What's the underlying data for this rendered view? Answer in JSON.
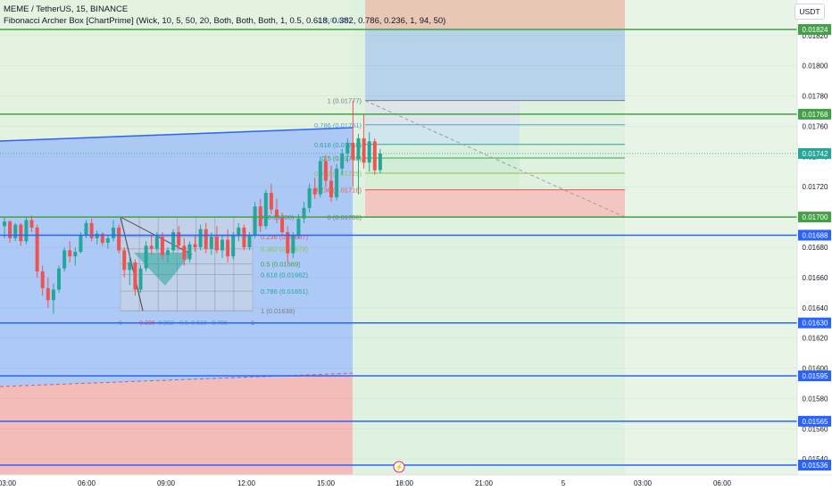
{
  "header": {
    "title": "MEME / TetherUS, 15, BINANCE",
    "indicator": "Fibonacci Archer Box [ChartPrime] (Wick, 10, 5, 50, 20, Both, Both, Both, 1, 0.5, 0.618, 0.382, 0.786, 0.236, 1, 94, 50)"
  },
  "currency_button": "USDT",
  "colors": {
    "up": "#26a69a",
    "down": "#ef5350",
    "blue_line": "#2962ff",
    "green_line": "#43a047",
    "blue_zone": "#a9c6f5",
    "red_zone": "#f2b8b5",
    "green_zone": "#dff2df"
  },
  "chart_data": {
    "type": "candlestick",
    "symbol": "MEME/USDT",
    "interval": "15",
    "exchange": "BINANCE",
    "ylim": [
      0.01532,
      0.01842
    ],
    "price_ticks": [
      "0.01540",
      "0.01560",
      "0.01580",
      "0.01600",
      "0.01620",
      "0.01640",
      "0.01660",
      "0.01680",
      "0.01700",
      "0.01720",
      "0.01740",
      "0.01760",
      "0.01780",
      "0.01800",
      "0.01820"
    ],
    "time_labels": [
      "03:00",
      "06:00",
      "09:00",
      "12:00",
      "15:00",
      "18:00",
      "21:00",
      "5",
      "03:00",
      "06:00"
    ],
    "horizontal_lines": [
      {
        "price": 0.01824,
        "label": "0.01824",
        "color": "green"
      },
      {
        "price": 0.01768,
        "label": "0.01768",
        "color": "green"
      },
      {
        "price": 0.017,
        "label": "0.01700",
        "color": "green"
      },
      {
        "price": 0.01688,
        "label": "0.01688",
        "color": "blue"
      },
      {
        "price": 0.0163,
        "label": "0.01630",
        "color": "blue"
      },
      {
        "price": 0.01595,
        "label": "0.01595",
        "color": "blue"
      },
      {
        "price": 0.01565,
        "label": "0.01565",
        "color": "blue"
      },
      {
        "price": 0.01536,
        "label": "0.01536",
        "color": "blue"
      }
    ],
    "last_price": {
      "price": 0.01742,
      "label": "0.01742"
    },
    "fib_box_right": [
      {
        "text": "1 (0.01777)",
        "price": 0.01777,
        "color": "#787b86"
      },
      {
        "text": "0.786 (0.01761)",
        "price": 0.01761,
        "color": "#5b9bd5"
      },
      {
        "text": "0.618 (0.01748)",
        "price": 0.01748,
        "color": "#26a69a"
      },
      {
        "text": "0.5 (0.01739)",
        "price": 0.01739,
        "color": "#43a047"
      },
      {
        "text": "0.382 (0.01729)",
        "price": 0.01729,
        "color": "#8bc34a"
      },
      {
        "text": "0.236 (0.01718)",
        "price": 0.01718,
        "color": "#ef5350"
      },
      {
        "text": "0 (0.01700)",
        "price": 0.017,
        "color": "#787b86"
      }
    ],
    "fib_box_right_top": "1 (0.01825)",
    "fib_box_left": [
      {
        "text": "0 (0.01700)",
        "price": 0.017,
        "color": "#787b86"
      },
      {
        "text": "0.236 (0.01687)",
        "price": 0.01687,
        "color": "#ef5350"
      },
      {
        "text": "0.382 (0.01679)",
        "price": 0.01679,
        "color": "#8bc34a"
      },
      {
        "text": "0.5 (0.01669)",
        "price": 0.01669,
        "color": "#43a047"
      },
      {
        "text": "0.618 (0.01662)",
        "price": 0.01662,
        "color": "#26a69a"
      },
      {
        "text": "0.786 (0.01651)",
        "price": 0.01651,
        "color": "#26a69a"
      },
      {
        "text": "1 (0.01638)",
        "price": 0.01638,
        "color": "#787b86"
      }
    ],
    "fib_box_left_bottom": [
      "0",
      "0.236",
      "0.382",
      "0.5",
      "0.618",
      "0.786",
      "1"
    ],
    "candles": [
      [
        0.01694,
        0.017,
        0.01686,
        0.01697
      ],
      [
        0.01697,
        0.01698,
        0.01683,
        0.01686
      ],
      [
        0.01686,
        0.01696,
        0.01684,
        0.01695
      ],
      [
        0.01695,
        0.01696,
        0.01681,
        0.01684
      ],
      [
        0.01684,
        0.017,
        0.01682,
        0.01698
      ],
      [
        0.01698,
        0.01701,
        0.0169,
        0.01693
      ],
      [
        0.01693,
        0.01695,
        0.0166,
        0.01664
      ],
      [
        0.01664,
        0.01668,
        0.01648,
        0.01653
      ],
      [
        0.01653,
        0.0166,
        0.0164,
        0.01645
      ],
      [
        0.01645,
        0.01656,
        0.01636,
        0.01652
      ],
      [
        0.01652,
        0.01668,
        0.0165,
        0.01666
      ],
      [
        0.01666,
        0.0168,
        0.01664,
        0.01678
      ],
      [
        0.01678,
        0.01684,
        0.0167,
        0.01674
      ],
      [
        0.01674,
        0.0168,
        0.01668,
        0.01677
      ],
      [
        0.01677,
        0.0169,
        0.01676,
        0.01688
      ],
      [
        0.01688,
        0.01698,
        0.01686,
        0.01696
      ],
      [
        0.01696,
        0.01699,
        0.01684,
        0.01686
      ],
      [
        0.01686,
        0.01691,
        0.01682,
        0.01689
      ],
      [
        0.01689,
        0.0169,
        0.01681,
        0.01683
      ],
      [
        0.01683,
        0.01688,
        0.01679,
        0.01686
      ],
      [
        0.01686,
        0.01698,
        0.01684,
        0.01693
      ],
      [
        0.01693,
        0.01695,
        0.01676,
        0.01678
      ],
      [
        0.01678,
        0.0168,
        0.0166,
        0.01665
      ],
      [
        0.01665,
        0.01675,
        0.01655,
        0.0167
      ],
      [
        0.0167,
        0.01672,
        0.01648,
        0.01652
      ],
      [
        0.01652,
        0.01668,
        0.0165,
        0.01666
      ],
      [
        0.01666,
        0.01684,
        0.01664,
        0.01681
      ],
      [
        0.01681,
        0.01688,
        0.01675,
        0.01679
      ],
      [
        0.01679,
        0.0169,
        0.01677,
        0.01687
      ],
      [
        0.01687,
        0.0169,
        0.01672,
        0.01675
      ],
      [
        0.01675,
        0.0168,
        0.0167,
        0.01678
      ],
      [
        0.01678,
        0.01692,
        0.01676,
        0.0169
      ],
      [
        0.0169,
        0.01694,
        0.01678,
        0.01681
      ],
      [
        0.01681,
        0.01686,
        0.01668,
        0.01672
      ],
      [
        0.01672,
        0.01684,
        0.0167,
        0.01682
      ],
      [
        0.01682,
        0.01688,
        0.01677,
        0.0168
      ],
      [
        0.0168,
        0.01695,
        0.01678,
        0.01692
      ],
      [
        0.01692,
        0.01696,
        0.01676,
        0.01679
      ],
      [
        0.01679,
        0.0169,
        0.01675,
        0.01687
      ],
      [
        0.01687,
        0.01694,
        0.01676,
        0.01678
      ],
      [
        0.01678,
        0.01688,
        0.01673,
        0.01685
      ],
      [
        0.01685,
        0.01692,
        0.0167,
        0.01674
      ],
      [
        0.01674,
        0.0169,
        0.01672,
        0.01688
      ],
      [
        0.01688,
        0.01696,
        0.01684,
        0.01693
      ],
      [
        0.01693,
        0.01695,
        0.01678,
        0.0168
      ],
      [
        0.0168,
        0.0169,
        0.01678,
        0.01688
      ],
      [
        0.01688,
        0.0171,
        0.01686,
        0.01707
      ],
      [
        0.01707,
        0.01712,
        0.0169,
        0.01694
      ],
      [
        0.01694,
        0.01718,
        0.01692,
        0.01716
      ],
      [
        0.01716,
        0.01722,
        0.01702,
        0.01705
      ],
      [
        0.01705,
        0.01712,
        0.01696,
        0.017
      ],
      [
        0.017,
        0.01703,
        0.01688,
        0.0169
      ],
      [
        0.0169,
        0.01694,
        0.0167,
        0.01676
      ],
      [
        0.01676,
        0.0169,
        0.01673,
        0.01688
      ],
      [
        0.01688,
        0.01702,
        0.01686,
        0.01699
      ],
      [
        0.01699,
        0.0171,
        0.01696,
        0.01706
      ],
      [
        0.01706,
        0.01722,
        0.01703,
        0.01719
      ],
      [
        0.01719,
        0.01726,
        0.01712,
        0.01715
      ],
      [
        0.01715,
        0.0174,
        0.01713,
        0.01737
      ],
      [
        0.01737,
        0.01741,
        0.0172,
        0.01724
      ],
      [
        0.01724,
        0.01734,
        0.0171,
        0.01713
      ],
      [
        0.01713,
        0.01735,
        0.01711,
        0.01732
      ],
      [
        0.01732,
        0.01745,
        0.01728,
        0.01742
      ],
      [
        0.01742,
        0.01752,
        0.01736,
        0.01749
      ],
      [
        0.01749,
        0.01777,
        0.0172,
        0.01738
      ],
      [
        0.01738,
        0.01755,
        0.01715,
        0.01752
      ],
      [
        0.01752,
        0.01768,
        0.01732,
        0.01736
      ],
      [
        0.01736,
        0.01756,
        0.0173,
        0.0175
      ],
      [
        0.0175,
        0.01752,
        0.01728,
        0.01731
      ],
      [
        0.01731,
        0.01745,
        0.01729,
        0.01742
      ]
    ]
  }
}
